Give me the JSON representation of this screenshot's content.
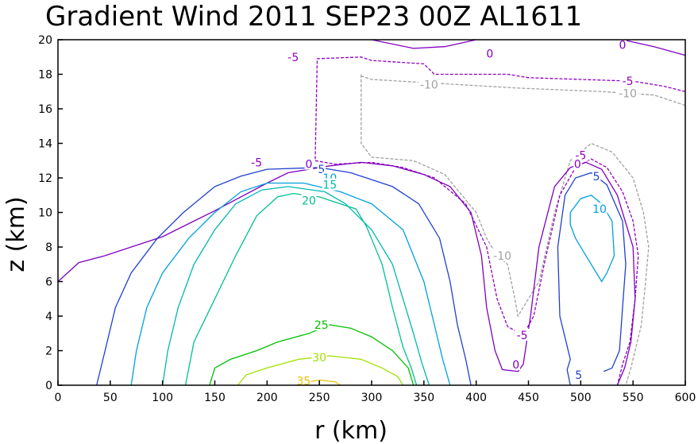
{
  "chart_data": {
    "type": "contour",
    "title": "Gradient Wind 2011 SEP23 00Z  AL1611",
    "xlabel": "r (km)",
    "ylabel": "z (km)",
    "xlim": [
      0,
      600
    ],
    "ylim": [
      0,
      20
    ],
    "xticks": [
      0,
      50,
      100,
      150,
      200,
      250,
      300,
      350,
      400,
      450,
      500,
      550,
      600
    ],
    "yticks": [
      0,
      2,
      4,
      6,
      8,
      10,
      12,
      14,
      16,
      18,
      20
    ],
    "grid": false,
    "contours": [
      {
        "level": "-10",
        "color": "#a0a0a0",
        "dashed": true,
        "label_text": "-10",
        "lines": [
          [
            [
              600,
              16.2
            ],
            [
              570,
              16.8
            ],
            [
              520,
              17.0
            ],
            [
              440,
              17.2
            ],
            [
              300,
              17.7
            ],
            [
              290,
              17.9
            ],
            [
              290,
              18.0
            ],
            [
              290,
              14.0
            ],
            [
              300,
              13.2
            ],
            [
              340,
              13.0
            ],
            [
              370,
              12.2
            ],
            [
              400,
              10.0
            ],
            [
              410,
              8.5
            ],
            [
              420,
              7.5
            ],
            [
              430,
              7.0
            ],
            [
              437,
              5.0
            ],
            [
              440,
              4.0
            ],
            [
              460,
              6.0
            ],
            [
              475,
              10.0
            ],
            [
              490,
              13.0
            ],
            [
              510,
              14.0
            ],
            [
              530,
              13.5
            ],
            [
              550,
              12.0
            ],
            [
              560,
              10.0
            ],
            [
              565,
              8.0
            ],
            [
              562,
              6.0
            ],
            [
              558,
              3.5
            ],
            [
              552,
              2.0
            ],
            [
              548,
              1.0
            ],
            [
              543,
              0
            ]
          ]
        ],
        "labels": [
          {
            "text": "-10",
            "x": 355,
            "y": 17.4
          },
          {
            "text": "-10",
            "x": 545,
            "y": 16.9
          },
          {
            "text": "-10",
            "x": 425,
            "y": 7.5
          }
        ]
      },
      {
        "level": "-5",
        "color": "#9000c0",
        "dashed": true,
        "label_text": "-5",
        "lines": [
          [
            [
              600,
              17.0
            ],
            [
              580,
              17.3
            ],
            [
              550,
              17.6
            ],
            [
              500,
              17.7
            ],
            [
              450,
              17.8
            ],
            [
              430,
              18.0
            ],
            [
              360,
              18.0
            ],
            [
              350,
              18.6
            ],
            [
              300,
              18.8
            ],
            [
              290,
              19.0
            ],
            [
              248,
              18.9
            ],
            [
              246,
              13.0
            ],
            [
              265,
              12.8
            ],
            [
              300,
              12.9
            ],
            [
              330,
              12.6
            ],
            [
              360,
              12.0
            ],
            [
              390,
              10.5
            ],
            [
              410,
              8.0
            ],
            [
              420,
              5.0
            ],
            [
              430,
              3.4
            ],
            [
              445,
              2.9
            ],
            [
              455,
              4.0
            ],
            [
              465,
              7.0
            ],
            [
              480,
              11.0
            ],
            [
              495,
              12.6
            ],
            [
              510,
              13.1
            ],
            [
              525,
              12.6
            ],
            [
              540,
              11.2
            ],
            [
              550,
              9.5
            ],
            [
              555,
              7.5
            ],
            [
              552,
              5.0
            ],
            [
              547,
              2.5
            ],
            [
              540,
              1.2
            ],
            [
              535,
              0
            ]
          ]
        ],
        "labels": [
          {
            "text": "-5",
            "x": 225,
            "y": 19.0
          },
          {
            "text": "-5",
            "x": 545,
            "y": 17.6
          },
          {
            "text": "-5",
            "x": 190,
            "y": 12.9
          },
          {
            "text": "-5",
            "x": 444,
            "y": 2.9
          },
          {
            "text": "-5",
            "x": 500,
            "y": 13.3
          }
        ]
      },
      {
        "level": "0",
        "color": "#8000c0",
        "dashed": false,
        "label_text": "0",
        "lines": [
          [
            [
              300,
              20
            ],
            [
              340,
              19.5
            ],
            [
              370,
              19.6
            ],
            [
              400,
              20
            ]
          ],
          [
            [
              540,
              20
            ],
            [
              570,
              19.6
            ],
            [
              600,
              19.1
            ]
          ],
          [
            [
              0,
              6.0
            ],
            [
              20,
              7.1
            ],
            [
              45,
              7.5
            ],
            [
              70,
              8.0
            ],
            [
              100,
              8.6
            ],
            [
              150,
              10.1
            ],
            [
              200,
              11.7
            ],
            [
              220,
              12.3
            ],
            [
              260,
              12.7
            ],
            [
              290,
              12.9
            ],
            [
              320,
              12.7
            ],
            [
              350,
              12.2
            ],
            [
              375,
              11.5
            ],
            [
              395,
              10.0
            ],
            [
              405,
              7.5
            ],
            [
              410,
              4.5
            ],
            [
              418,
              2.0
            ],
            [
              425,
              0.9
            ],
            [
              440,
              0.8
            ],
            [
              445,
              1.2
            ],
            [
              452,
              4.0
            ],
            [
              460,
              8.0
            ],
            [
              475,
              11.5
            ],
            [
              490,
              12.6
            ],
            [
              505,
              12.9
            ],
            [
              520,
              12.5
            ],
            [
              535,
              11.0
            ],
            [
              550,
              8.0
            ],
            [
              552,
              5.0
            ],
            [
              548,
              2.5
            ],
            [
              542,
              1.0
            ],
            [
              535,
              0
            ]
          ]
        ],
        "labels": [
          {
            "text": "0",
            "x": 413,
            "y": 19.2
          },
          {
            "text": "0",
            "x": 540,
            "y": 19.7
          },
          {
            "text": "0",
            "x": 240,
            "y": 12.8
          },
          {
            "text": "0",
            "x": 438,
            "y": 1.2
          },
          {
            "text": "0",
            "x": 497,
            "y": 12.8
          }
        ]
      },
      {
        "level": "5",
        "color": "#2040d0",
        "dashed": false,
        "label_text": "5",
        "lines": [
          [
            [
              37,
              0
            ],
            [
              45,
              2.0
            ],
            [
              55,
              4.5
            ],
            [
              70,
              6.5
            ],
            [
              95,
              8.5
            ],
            [
              120,
              10.0
            ],
            [
              150,
              11.5
            ],
            [
              175,
              12.1
            ],
            [
              200,
              12.5
            ],
            [
              250,
              12.6
            ],
            [
              280,
              12.3
            ],
            [
              320,
              11.5
            ],
            [
              345,
              10.5
            ],
            [
              365,
              8.5
            ],
            [
              375,
              6.0
            ],
            [
              382,
              3.5
            ],
            [
              390,
              1.5
            ],
            [
              395,
              0
            ]
          ],
          [
            [
              490,
              0
            ],
            [
              487,
              0.9
            ],
            [
              490,
              1.5
            ],
            [
              480,
              4.0
            ],
            [
              478,
              8.0
            ],
            [
              485,
              11.0
            ],
            [
              495,
              12.0
            ],
            [
              510,
              12.3
            ],
            [
              525,
              11.6
            ],
            [
              540,
              9.5
            ],
            [
              543,
              7.0
            ],
            [
              540,
              4.5
            ],
            [
              537,
              2.0
            ],
            [
              530,
              1.0
            ],
            [
              522,
              0.8
            ]
          ]
        ],
        "labels": [
          {
            "text": "5",
            "x": 252,
            "y": 12.5
          },
          {
            "text": "5",
            "x": 498,
            "y": 0.6
          },
          {
            "text": "5",
            "x": 515,
            "y": 12.1
          }
        ]
      },
      {
        "level": "10",
        "color": "#00a0e0",
        "dashed": false,
        "label_text": "10",
        "lines": [
          [
            [
              70,
              0
            ],
            [
              75,
              2.0
            ],
            [
              85,
              4.5
            ],
            [
              100,
              6.5
            ],
            [
              125,
              8.5
            ],
            [
              150,
              10.0
            ],
            [
              175,
              11.2
            ],
            [
              200,
              11.7
            ],
            [
              235,
              11.7
            ],
            [
              270,
              11.2
            ],
            [
              300,
              10.5
            ],
            [
              330,
              9.0
            ],
            [
              350,
              6.0
            ],
            [
              360,
              3.5
            ],
            [
              368,
              1.5
            ],
            [
              375,
              0
            ]
          ],
          [
            [
              490,
              10
            ],
            [
              500,
              10.8
            ],
            [
              510,
              11.0
            ],
            [
              520,
              10.5
            ],
            [
              530,
              9.5
            ],
            [
              532,
              7.5
            ],
            [
              525,
              6.5
            ],
            [
              520,
              6.0
            ],
            [
              505,
              7.5
            ],
            [
              495,
              8.5
            ],
            [
              490,
              9.3
            ],
            [
              490,
              10
            ]
          ]
        ],
        "labels": [
          {
            "text": "10",
            "x": 260,
            "y": 12.0
          },
          {
            "text": "10",
            "x": 518,
            "y": 10.2
          }
        ]
      },
      {
        "level": "15",
        "color": "#00b8b0",
        "dashed": false,
        "label_text": "15",
        "lines": [
          [
            [
              100,
              0
            ],
            [
              105,
              2.0
            ],
            [
              115,
              4.5
            ],
            [
              130,
              7.0
            ],
            [
              150,
              9.0
            ],
            [
              170,
              10.5
            ],
            [
              195,
              11.3
            ],
            [
              220,
              11.5
            ],
            [
              255,
              11.2
            ],
            [
              275,
              10.5
            ],
            [
              300,
              9.0
            ],
            [
              320,
              7.0
            ],
            [
              330,
              5.0
            ],
            [
              340,
              3.0
            ],
            [
              348,
              1.3
            ],
            [
              355,
              0
            ]
          ]
        ],
        "labels": [
          {
            "text": "15",
            "x": 260,
            "y": 11.6
          }
        ]
      },
      {
        "level": "20",
        "color": "#00c090",
        "dashed": false,
        "label_text": "20",
        "lines": [
          [
            [
              122,
              0
            ],
            [
              130,
              2.5
            ],
            [
              150,
              5.0
            ],
            [
              170,
              7.5
            ],
            [
              190,
              9.8
            ],
            [
              210,
              10.9
            ],
            [
              225,
              11.1
            ],
            [
              250,
              10.9
            ],
            [
              260,
              10.7
            ],
            [
              285,
              10.2
            ],
            [
              295,
              9.2
            ],
            [
              310,
              7.0
            ],
            [
              320,
              4.5
            ],
            [
              330,
              2.2
            ],
            [
              338,
              1.0
            ],
            [
              343,
              0
            ]
          ]
        ],
        "labels": [
          {
            "text": "20",
            "x": 240,
            "y": 10.7
          }
        ]
      },
      {
        "level": "25",
        "color": "#00c000",
        "dashed": false,
        "label_text": "25",
        "lines": [
          [
            [
              145,
              0
            ],
            [
              150,
              1.0
            ],
            [
              165,
              1.5
            ],
            [
              190,
              2.0
            ],
            [
              210,
              2.5
            ],
            [
              240,
              3.0
            ],
            [
              260,
              3.5
            ],
            [
              280,
              3.3
            ],
            [
              300,
              2.8
            ],
            [
              320,
              2.0
            ],
            [
              335,
              1.0
            ],
            [
              340,
              0
            ]
          ]
        ],
        "labels": [
          {
            "text": "25",
            "x": 252,
            "y": 3.5
          }
        ]
      },
      {
        "level": "30",
        "color": "#a0e000",
        "dashed": false,
        "label_text": "30",
        "lines": [
          [
            [
              172,
              0
            ],
            [
              180,
              0.6
            ],
            [
              200,
              1.0
            ],
            [
              230,
              1.5
            ],
            [
              260,
              1.7
            ],
            [
              290,
              1.5
            ],
            [
              310,
              1.0
            ],
            [
              325,
              0.5
            ],
            [
              330,
              0
            ]
          ]
        ],
        "labels": [
          {
            "text": "30",
            "x": 250,
            "y": 1.6
          }
        ]
      },
      {
        "level": "35",
        "color": "#f0c000",
        "dashed": false,
        "label_text": "35",
        "lines": [
          [
            [
              230,
              0
            ],
            [
              240,
              0.2
            ],
            [
              250,
              0.3
            ],
            [
              265,
              0.2
            ],
            [
              270,
              0
            ]
          ]
        ],
        "labels": [
          {
            "text": "35",
            "x": 235,
            "y": 0.25
          }
        ]
      }
    ]
  }
}
